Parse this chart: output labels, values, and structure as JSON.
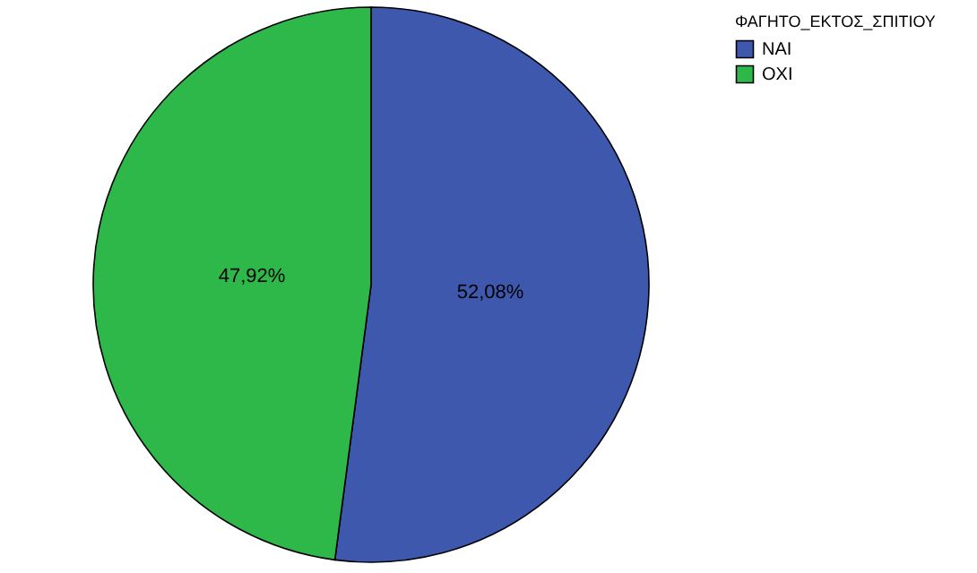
{
  "chart_data": {
    "type": "pie",
    "legend_title": "ΦΑΓΗΤΟ_ΕΚΤΟΣ_ΣΠΙΤΙΟΥ",
    "categories": [
      "ΝΑΙ",
      "ΟΧΙ"
    ],
    "values": [
      52.08,
      47.92
    ],
    "colors": [
      "#3e58ad",
      "#2fb84a"
    ],
    "value_labels": [
      "52,08%",
      "47,92%"
    ],
    "legend": "top right"
  }
}
